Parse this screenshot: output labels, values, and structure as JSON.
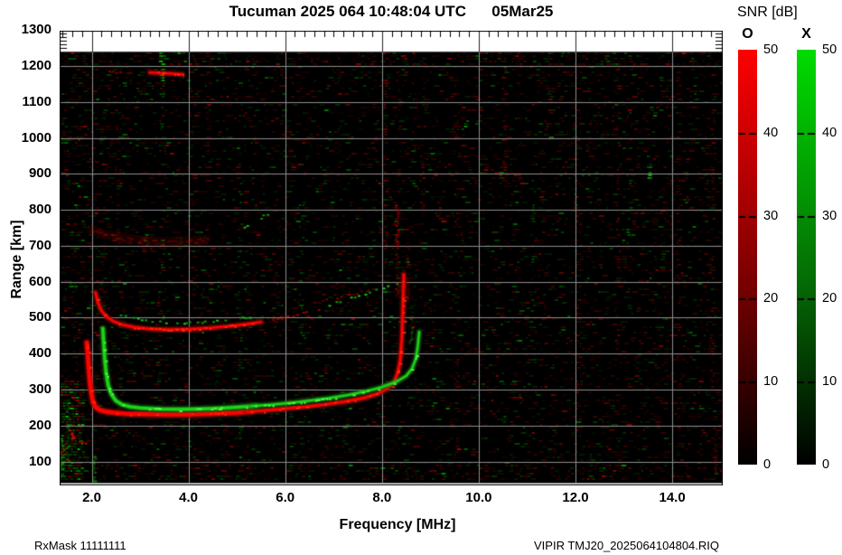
{
  "title": "Tucuman 2025 064 10:48:04 UTC      05Mar25",
  "footer": {
    "left": "RxMask 11111111",
    "right": "VIPIR  TMJ20_2025064104804.RIQ"
  },
  "axes": {
    "x_label": "Frequency [MHz]",
    "y_label": "Range [km]",
    "x_ticks": [
      "2.0",
      "4.0",
      "6.0",
      "8.0",
      "10.0",
      "12.0",
      "14.0"
    ],
    "x_tick_values": [
      2,
      4,
      6,
      8,
      10,
      12,
      14
    ],
    "y_ticks": [
      "1300",
      "1200",
      "1100",
      "1000",
      "900",
      "800",
      "700",
      "600",
      "500",
      "400",
      "300",
      "200",
      "100"
    ],
    "y_tick_values": [
      1300,
      1200,
      1100,
      1000,
      900,
      800,
      700,
      600,
      500,
      400,
      300,
      200,
      100
    ],
    "f_min": 1.36,
    "f_max": 15.0,
    "r_min": 35,
    "r_max": 1300
  },
  "colorbar": {
    "title": "SNR [dB]",
    "o_label": "O",
    "x_label": "X",
    "tick_labels": [
      "50",
      "40",
      "30",
      "20",
      "10",
      "0"
    ],
    "tick_values": [
      50,
      40,
      30,
      20,
      10,
      0
    ],
    "min": 0,
    "max": 50,
    "o_top_color": "#fe0000",
    "o_mid_color": "#7c0000",
    "x_top_color": "#00dc00",
    "x_mid_color": "#056e05",
    "bottom_color": "#000000"
  },
  "chart_data": {
    "type": "heatmap",
    "title": "Tucuman 2025 064 10:48:04 UTC 05Mar25",
    "xlabel": "Frequency [MHz]",
    "ylabel": "Range [km]",
    "xlim": [
      1.36,
      15.0
    ],
    "ylim": [
      35,
      1300
    ],
    "grid": {
      "x_step_mhz": 2,
      "y_step_km": 100,
      "color": "#8e8e8e"
    },
    "background": "#000000",
    "data_region": {
      "r_top": 1240,
      "r_bottom": 38
    },
    "legend": {
      "O_mode_color": "#ff0000",
      "X_mode_color": "#00dc00",
      "units": "SNR dB 0-50"
    },
    "palette": {
      "O": {
        "core": "#f80400",
        "mid": "#bb0300",
        "halo": "rgba(130,12,0,0.33)",
        "spark": "#ff2a10"
      },
      "X": {
        "core": "#1ed418",
        "mid": "#0f9c12",
        "halo": "rgba(20,115,20,0.33)",
        "spark": "#55ff45"
      }
    },
    "traces": [
      {
        "name": "F2-1hop-O-flat",
        "mode": "O",
        "style": "solid",
        "w": 5,
        "points": [
          [
            1.9,
            430
          ],
          [
            1.92,
            395
          ],
          [
            1.94,
            360
          ],
          [
            1.96,
            325
          ],
          [
            1.99,
            292
          ],
          [
            2.03,
            264
          ],
          [
            2.09,
            250
          ],
          [
            2.17,
            243
          ],
          [
            2.28,
            239
          ],
          [
            2.45,
            236
          ],
          [
            2.7,
            233
          ],
          [
            3.0,
            232
          ],
          [
            3.5,
            231
          ],
          [
            4.0,
            231
          ],
          [
            4.5,
            233
          ],
          [
            5.0,
            236
          ],
          [
            5.3,
            239
          ]
        ]
      },
      {
        "name": "F2-1hop-O-cusp",
        "mode": "O",
        "style": "solid",
        "w": 3.4,
        "points": [
          [
            5.2,
            238
          ],
          [
            5.6,
            242
          ],
          [
            6.0,
            247
          ],
          [
            6.4,
            252
          ],
          [
            6.8,
            258
          ],
          [
            7.2,
            266
          ],
          [
            7.6,
            276
          ],
          [
            7.9,
            288
          ],
          [
            8.1,
            302
          ],
          [
            8.25,
            322
          ],
          [
            8.33,
            348
          ],
          [
            8.38,
            385
          ],
          [
            8.41,
            440
          ],
          [
            8.43,
            520
          ],
          [
            8.45,
            620
          ]
        ]
      },
      {
        "name": "F2-1hop-X-flat",
        "mode": "X",
        "style": "solid",
        "w": 4,
        "points": [
          [
            2.23,
            470
          ],
          [
            2.25,
            425
          ],
          [
            2.27,
            385
          ],
          [
            2.3,
            345
          ],
          [
            2.34,
            312
          ],
          [
            2.41,
            286
          ],
          [
            2.5,
            269
          ],
          [
            2.63,
            258
          ],
          [
            2.8,
            252
          ],
          [
            3.0,
            249
          ],
          [
            3.4,
            246
          ],
          [
            3.8,
            245
          ],
          [
            4.2,
            246
          ],
          [
            4.6,
            248
          ],
          [
            5.0,
            251
          ],
          [
            5.4,
            255
          ]
        ]
      },
      {
        "name": "F2-1hop-X-cusp",
        "mode": "X",
        "style": "solid",
        "w": 3,
        "points": [
          [
            5.3,
            254
          ],
          [
            5.7,
            258
          ],
          [
            6.1,
            263
          ],
          [
            6.5,
            269
          ],
          [
            6.9,
            276
          ],
          [
            7.3,
            285
          ],
          [
            7.7,
            296
          ],
          [
            8.0,
            307
          ],
          [
            8.3,
            322
          ],
          [
            8.5,
            338
          ],
          [
            8.62,
            358
          ],
          [
            8.7,
            385
          ],
          [
            8.74,
            420
          ],
          [
            8.77,
            460
          ]
        ]
      },
      {
        "name": "F2-2hop-O",
        "mode": "O",
        "style": "solid",
        "w": 3.2,
        "points": [
          [
            2.08,
            570
          ],
          [
            2.12,
            545
          ],
          [
            2.2,
            520
          ],
          [
            2.3,
            503
          ],
          [
            2.45,
            490
          ],
          [
            2.65,
            480
          ],
          [
            2.9,
            473
          ],
          [
            3.2,
            469
          ],
          [
            3.6,
            467
          ],
          [
            4.0,
            468
          ],
          [
            4.4,
            471
          ],
          [
            4.8,
            476
          ],
          [
            5.2,
            482
          ],
          [
            5.5,
            488
          ]
        ]
      },
      {
        "name": "F2-2hop-O-tail",
        "mode": "O",
        "style": "sparse",
        "a": 0.6,
        "points": [
          [
            5.5,
            488
          ],
          [
            5.9,
            500
          ],
          [
            6.3,
            512
          ],
          [
            6.7,
            525
          ]
        ]
      },
      {
        "name": "F2-2hop-X",
        "mode": "X",
        "style": "sparse",
        "a": 0.9,
        "points": [
          [
            2.6,
            510
          ],
          [
            2.85,
            500
          ],
          [
            3.1,
            494
          ],
          [
            3.4,
            490
          ],
          [
            3.75,
            487
          ],
          [
            4.1,
            488
          ],
          [
            4.5,
            491
          ],
          [
            4.9,
            497
          ],
          [
            5.25,
            504
          ]
        ]
      },
      {
        "name": "F2-2hop-X-rise",
        "mode": "X",
        "style": "sparse",
        "a": 0.9,
        "points": [
          [
            6.9,
            538
          ],
          [
            7.2,
            550
          ],
          [
            7.5,
            562
          ],
          [
            7.8,
            575
          ],
          [
            8.1,
            589
          ],
          [
            8.35,
            601
          ]
        ]
      },
      {
        "name": "F2-2hop-O-rise-faint",
        "mode": "O",
        "style": "sparse",
        "a": 0.45,
        "points": [
          [
            6.6,
            545
          ],
          [
            7.0,
            556
          ],
          [
            7.4,
            568
          ],
          [
            7.7,
            580
          ]
        ]
      },
      {
        "name": "F2-3hop-O-diffuse",
        "mode": "O",
        "style": "diffuse",
        "w": 5,
        "points": [
          [
            2.0,
            745
          ],
          [
            2.3,
            730
          ],
          [
            2.7,
            720
          ],
          [
            3.1,
            714
          ],
          [
            3.5,
            711
          ],
          [
            3.9,
            712
          ],
          [
            4.35,
            717
          ]
        ]
      },
      {
        "name": "F2-3hop-X-bits",
        "mode": "X",
        "style": "sparse",
        "a": 0.85,
        "points": [
          [
            5.15,
            752
          ],
          [
            5.35,
            768
          ],
          [
            5.55,
            785
          ],
          [
            5.72,
            800
          ]
        ]
      },
      {
        "name": "rfi-streak-1185km-faint",
        "mode": "O",
        "style": "sparse",
        "a": 0.5,
        "points": [
          [
            2.3,
            1186
          ],
          [
            2.8,
            1184
          ],
          [
            3.2,
            1182
          ]
        ]
      },
      {
        "name": "rfi-streak-1185km-bright",
        "mode": "O",
        "style": "solid",
        "w": 3,
        "points": [
          [
            3.2,
            1182
          ],
          [
            3.6,
            1180
          ],
          [
            3.88,
            1177
          ]
        ]
      },
      {
        "name": "low-left-red-hook",
        "mode": "O",
        "style": "sparse",
        "a": 0.8,
        "points": [
          [
            1.55,
            188
          ],
          [
            1.62,
            168
          ],
          [
            1.72,
            157
          ],
          [
            1.85,
            152
          ]
        ]
      }
    ],
    "vertical_features": [
      {
        "f": 1.42,
        "r0": 95,
        "r1": 165,
        "mode": "X",
        "a": 0.85
      },
      {
        "f": 1.52,
        "r0": 100,
        "r1": 265,
        "mode": "X",
        "a": 0.45
      },
      {
        "f": 1.38,
        "r0": 60,
        "r1": 130,
        "mode": "X",
        "a": 0.6
      },
      {
        "f": 2.06,
        "r0": 30,
        "r1": 115,
        "mode": "X",
        "a": 0.55
      },
      {
        "f": 1.62,
        "r0": 145,
        "r1": 190,
        "mode": "O",
        "a": 0.8
      },
      {
        "f": 8.33,
        "r0": 560,
        "r1": 815,
        "mode": "O",
        "a": 0.7
      },
      {
        "f": 8.55,
        "r0": 545,
        "r1": 700,
        "mode": "O",
        "a": 0.4
      },
      {
        "f": 8.62,
        "r0": 430,
        "r1": 530,
        "mode": "X",
        "a": 0.4
      },
      {
        "f": 14.9,
        "r0": 60,
        "r1": 200,
        "mode": "O",
        "a": 0.3
      }
    ],
    "rfi_columns": [
      {
        "f": 2.55,
        "mode": "O",
        "r0": 600,
        "r1": 1200,
        "a": 0.1
      },
      {
        "f": 3.47,
        "mode": "X",
        "r0": 1160,
        "r1": 1245,
        "a": 0.85
      },
      {
        "f": 3.47,
        "mode": "X",
        "r0": 400,
        "r1": 1160,
        "a": 0.1
      },
      {
        "f": 4.42,
        "mode": "O",
        "r0": 700,
        "r1": 1240,
        "a": 0.1
      },
      {
        "f": 5.08,
        "mode": "X",
        "r0": 150,
        "r1": 1100,
        "a": 0.09
      },
      {
        "f": 6.35,
        "mode": "X",
        "r0": 420,
        "r1": 820,
        "a": 0.13
      },
      {
        "f": 8.08,
        "mode": "O",
        "r0": 620,
        "r1": 1240,
        "a": 0.2
      },
      {
        "f": 8.85,
        "mode": "O",
        "r0": 750,
        "r1": 1240,
        "a": 0.11
      },
      {
        "f": 9.55,
        "mode": "O",
        "r0": 120,
        "r1": 1240,
        "a": 0.1
      },
      {
        "f": 10.55,
        "mode": "O",
        "r0": 800,
        "r1": 1245,
        "a": 0.16
      },
      {
        "f": 11.15,
        "mode": "X",
        "r0": 300,
        "r1": 900,
        "a": 0.09
      },
      {
        "f": 12.08,
        "mode": "O",
        "r0": 150,
        "r1": 1240,
        "a": 0.13
      },
      {
        "f": 12.9,
        "mode": "O",
        "r0": 400,
        "r1": 1150,
        "a": 0.13
      },
      {
        "f": 13.12,
        "mode": "X",
        "r0": 700,
        "r1": 1000,
        "a": 0.12
      },
      {
        "f": 13.55,
        "mode": "X",
        "r0": 850,
        "r1": 960,
        "a": 0.3
      },
      {
        "f": 14.15,
        "mode": "O",
        "r0": 100,
        "r1": 1240,
        "a": 0.12
      },
      {
        "f": 14.85,
        "mode": "O",
        "r0": 300,
        "r1": 1200,
        "a": 0.14
      }
    ],
    "noise": {
      "seed": 20250305,
      "count": 6200,
      "green_fraction": 0.32,
      "clusters": [
        {
          "f0": 1.33,
          "f1": 1.8,
          "r0": 40,
          "r1": 320,
          "n": 280,
          "g": 0.55,
          "bright": 1.7
        },
        {
          "f0": 1.33,
          "f1": 15.0,
          "r0": 36,
          "r1": 95,
          "n": 240,
          "g": 0.3,
          "bright": 1.0
        },
        {
          "f0": 1.33,
          "f1": 15.0,
          "r0": 1195,
          "r1": 1243,
          "n": 220,
          "g": 0.25,
          "bright": 1.1
        },
        {
          "f0": 1.35,
          "f1": 2.3,
          "r0": 320,
          "r1": 1240,
          "n": 200,
          "g": 0.35,
          "bright": 1.0
        }
      ]
    }
  }
}
